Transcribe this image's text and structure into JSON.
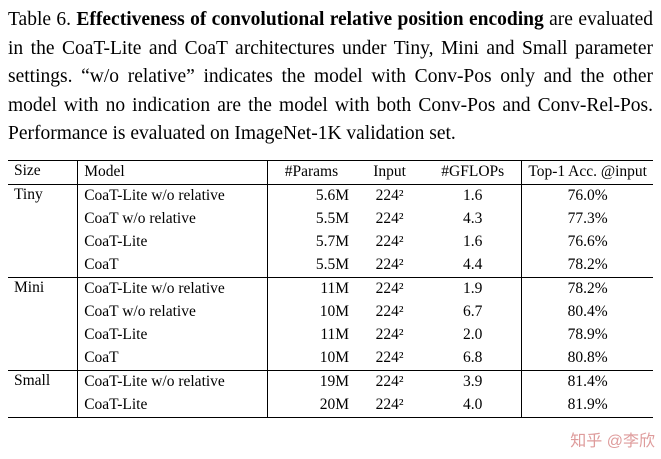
{
  "caption": {
    "label": "Table 6.",
    "title_bold": "Effectiveness of convolutional relative position encoding",
    "body": "are evaluated in the CoaT-Lite and CoaT architectures under Tiny, Mini and Small parameter settings. “w/o relative” indicates the model with Conv-Pos only and the other model with no indication are the model with both Conv-Pos and Conv-Rel-Pos. Performance is evaluated on ImageNet-1K validation set."
  },
  "table": {
    "headers": [
      "Size",
      "Model",
      "#Params",
      "Input",
      "#GFLOPs",
      "Top-1 Acc. @input"
    ],
    "groups": [
      {
        "size": "Tiny",
        "rows": [
          {
            "model": "CoaT-Lite w/o relative",
            "params": "5.6M",
            "input": "224²",
            "gflops": "1.6",
            "acc": "76.0%",
            "acc_bold": false
          },
          {
            "model": "CoaT w/o relative",
            "params": "5.5M",
            "input": "224²",
            "gflops": "4.3",
            "acc": "77.3%",
            "acc_bold": false
          },
          {
            "model": "CoaT-Lite",
            "params": "5.7M",
            "input": "224²",
            "gflops": "1.6",
            "acc": "76.6%",
            "acc_bold": false
          },
          {
            "model": "CoaT",
            "params": "5.5M",
            "input": "224²",
            "gflops": "4.4",
            "acc": "78.2%",
            "acc_bold": true
          }
        ]
      },
      {
        "size": "Mini",
        "rows": [
          {
            "model": "CoaT-Lite w/o relative",
            "params": "11M",
            "input": "224²",
            "gflops": "1.9",
            "acc": "78.2%",
            "acc_bold": false
          },
          {
            "model": "CoaT w/o relative",
            "params": "10M",
            "input": "224²",
            "gflops": "6.7",
            "acc": "80.4%",
            "acc_bold": false
          },
          {
            "model": "CoaT-Lite",
            "params": "11M",
            "input": "224²",
            "gflops": "2.0",
            "acc": "78.9%",
            "acc_bold": false
          },
          {
            "model": "CoaT",
            "params": "10M",
            "input": "224²",
            "gflops": "6.8",
            "acc": "80.8%",
            "acc_bold": true
          }
        ]
      },
      {
        "size": "Small",
        "rows": [
          {
            "model": "CoaT-Lite w/o relative",
            "params": "19M",
            "input": "224²",
            "gflops": "3.9",
            "acc": "81.4%",
            "acc_bold": false
          },
          {
            "model": "CoaT-Lite",
            "params": "20M",
            "input": "224²",
            "gflops": "4.0",
            "acc": "81.9%",
            "acc_bold": true
          }
        ]
      }
    ]
  },
  "watermark": {
    "text": "知乎 @李欣",
    "color": "#d98a8a"
  }
}
